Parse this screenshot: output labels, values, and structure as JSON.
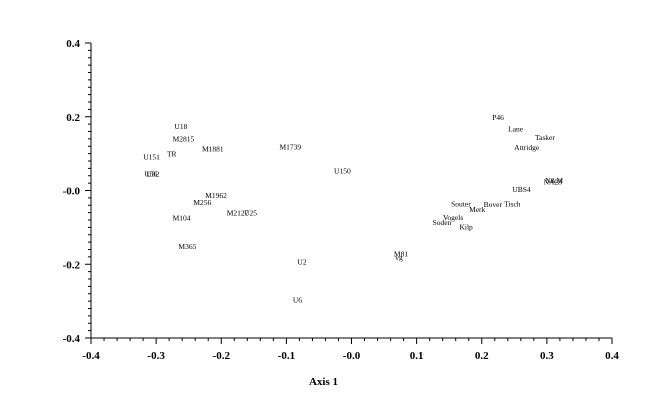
{
  "chart_data": {
    "type": "scatter",
    "title": "",
    "xlabel": "Axis 1",
    "ylabel": "",
    "xlim": [
      -0.4,
      0.4
    ],
    "ylim": [
      -0.4,
      0.4
    ],
    "x_ticks": [
      -0.4,
      -0.3,
      -0.2,
      -0.1,
      0.0,
      0.1,
      0.2,
      0.3,
      0.4
    ],
    "x_tick_labels": [
      "-0.4",
      "-0.3",
      "-0.2",
      "-0.1",
      "-0.0",
      "0.1",
      "0.2",
      "0.3",
      "0.4"
    ],
    "y_ticks": [
      0.4,
      0.2,
      0.0,
      -0.2,
      -0.4
    ],
    "y_tick_labels": [
      "0.4",
      "0.2",
      "-0.0",
      "-0.2",
      "-0.4"
    ],
    "grid": false,
    "legend": "none",
    "points": [
      {
        "label": "P46",
        "x": 0.225,
        "y": 0.2
      },
      {
        "label": "Lane",
        "x": 0.252,
        "y": 0.168
      },
      {
        "label": "Tasker",
        "x": 0.297,
        "y": 0.145
      },
      {
        "label": "Attridge",
        "x": 0.269,
        "y": 0.118
      },
      {
        "label": "N&M",
        "x": 0.311,
        "y": 0.029
      },
      {
        "label": "NA28",
        "x": 0.309,
        "y": 0.025
      },
      {
        "label": "UBS4",
        "x": 0.261,
        "y": 0.004
      },
      {
        "label": "Bover",
        "x": 0.217,
        "y": -0.036
      },
      {
        "label": "Tisch",
        "x": 0.247,
        "y": -0.035
      },
      {
        "label": "Souter",
        "x": 0.168,
        "y": -0.035
      },
      {
        "label": "Merk",
        "x": 0.193,
        "y": -0.05
      },
      {
        "label": "Vogels",
        "x": 0.156,
        "y": -0.072
      },
      {
        "label": "Soden",
        "x": 0.139,
        "y": -0.086
      },
      {
        "label": "Kilp",
        "x": 0.176,
        "y": -0.098
      },
      {
        "label": "M81",
        "x": 0.076,
        "y": -0.171
      },
      {
        "label": "vg",
        "x": 0.073,
        "y": -0.18
      },
      {
        "label": "U150",
        "x": -0.014,
        "y": 0.054
      },
      {
        "label": "U2",
        "x": -0.076,
        "y": -0.193
      },
      {
        "label": "U6",
        "x": -0.083,
        "y": -0.296
      },
      {
        "label": "M1739",
        "x": -0.094,
        "y": 0.119
      },
      {
        "label": "U18",
        "x": -0.262,
        "y": 0.175
      },
      {
        "label": "M2815",
        "x": -0.258,
        "y": 0.141
      },
      {
        "label": "M1881",
        "x": -0.213,
        "y": 0.114
      },
      {
        "label": "TR",
        "x": -0.276,
        "y": 0.1
      },
      {
        "label": "U151",
        "x": -0.307,
        "y": 0.092
      },
      {
        "label": "U56",
        "x": -0.308,
        "y": 0.046
      },
      {
        "label": "U82",
        "x": -0.305,
        "y": 0.046
      },
      {
        "label": "M1962",
        "x": -0.208,
        "y": -0.012
      },
      {
        "label": "M256",
        "x": -0.229,
        "y": -0.031
      },
      {
        "label": "M2127",
        "x": -0.175,
        "y": -0.06
      },
      {
        "label": "U25",
        "x": -0.155,
        "y": -0.06
      },
      {
        "label": "M104",
        "x": -0.261,
        "y": -0.073
      },
      {
        "label": "M365",
        "x": -0.252,
        "y": -0.15
      }
    ]
  }
}
